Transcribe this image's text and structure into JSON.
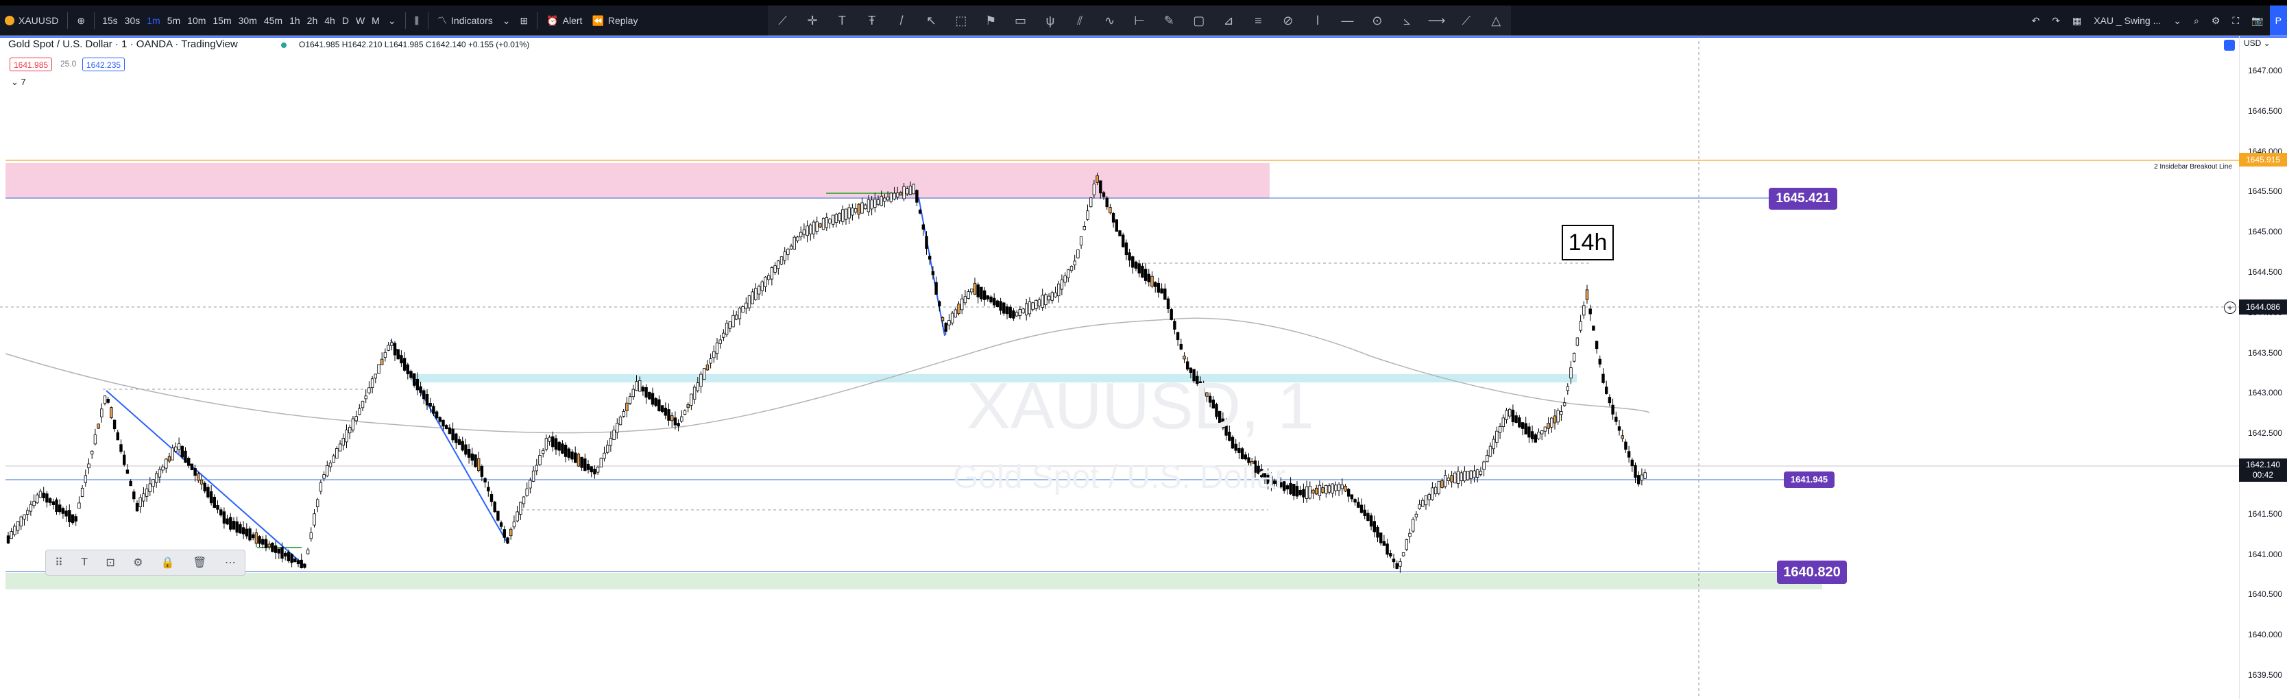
{
  "topbar": {
    "symbol": "XAUUSD",
    "intervals": [
      "15s",
      "30s",
      "1m",
      "5m",
      "10m",
      "15m",
      "30m",
      "45m",
      "1h",
      "2h",
      "4h",
      "D",
      "W",
      "M"
    ],
    "active_interval": "1m",
    "indicators_label": "Indicators",
    "alert_label": "Alert",
    "replay_label": "Replay",
    "layout_name": "XAU _ Swing ..."
  },
  "legend": {
    "title": "Gold Spot / U.S. Dollar · 1 · OANDA · TradingView",
    "ohlc": "O1641.985 H1642.210 L1641.985 C1642.140 +0.155 (+0.01%)",
    "sell_price": "1641.985",
    "spread": "25.0",
    "buy_price": "1642.235",
    "collapse_count": "7"
  },
  "watermark": {
    "symbol": "XAUUSD, 1",
    "name": "Gold Spot / U.S. Dollar"
  },
  "price_axis": {
    "currency": "USD",
    "ticks": [
      "1647.000",
      "1646.500",
      "1646.000",
      "1645.500",
      "1645.000",
      "1644.500",
      "1644.000",
      "1643.500",
      "1643.000",
      "1642.500",
      "1642.000",
      "1641.500",
      "1641.000",
      "1640.500",
      "1640.000",
      "1639.500"
    ],
    "current_price": "1642.140",
    "countdown": "00:42",
    "crosshair_price": "1644.086",
    "orange_line_price": "1645.915"
  },
  "labels": {
    "level_top": "1645.421",
    "level_mid": "1641.945",
    "level_bottom": "1640.820",
    "timeframe_tag": "14h",
    "breakout_line": "2 Insidebar Breakout Line"
  },
  "colors": {
    "accent": "#2962ff",
    "purple_label": "#673ab7",
    "pink_zone": "#f8cfe0",
    "cyan_zone": "#c9edf3",
    "green_zone": "#dcefdc",
    "candle_up": "#ffffff",
    "candle_down": "#000000",
    "candle_highlight": "#e7a04e",
    "trendline": "#2962ff",
    "moving_average": "#b0b0b0"
  },
  "icons": {
    "drawing_tools": [
      "cursor-icon",
      "crosshair-icon",
      "text-icon",
      "fib-icon",
      "trendline-icon",
      "arrow-icon",
      "callout-icon",
      "flag-icon",
      "comment-icon",
      "pitchfork-icon",
      "channel-icon",
      "path-icon",
      "range-icon",
      "brush-icon",
      "rectangle-icon",
      "ruler-icon",
      "lines-icon",
      "gann-icon",
      "vertical-icon",
      "horizontal-icon",
      "projection-icon",
      "circle-icon",
      "trend-angle-icon",
      "ray-icon",
      "triangle-icon"
    ],
    "floating_toolbar": [
      "drag-handle-icon",
      "text-icon",
      "template-icon",
      "settings-icon",
      "lock-icon",
      "trash-icon",
      "more-icon"
    ]
  }
}
